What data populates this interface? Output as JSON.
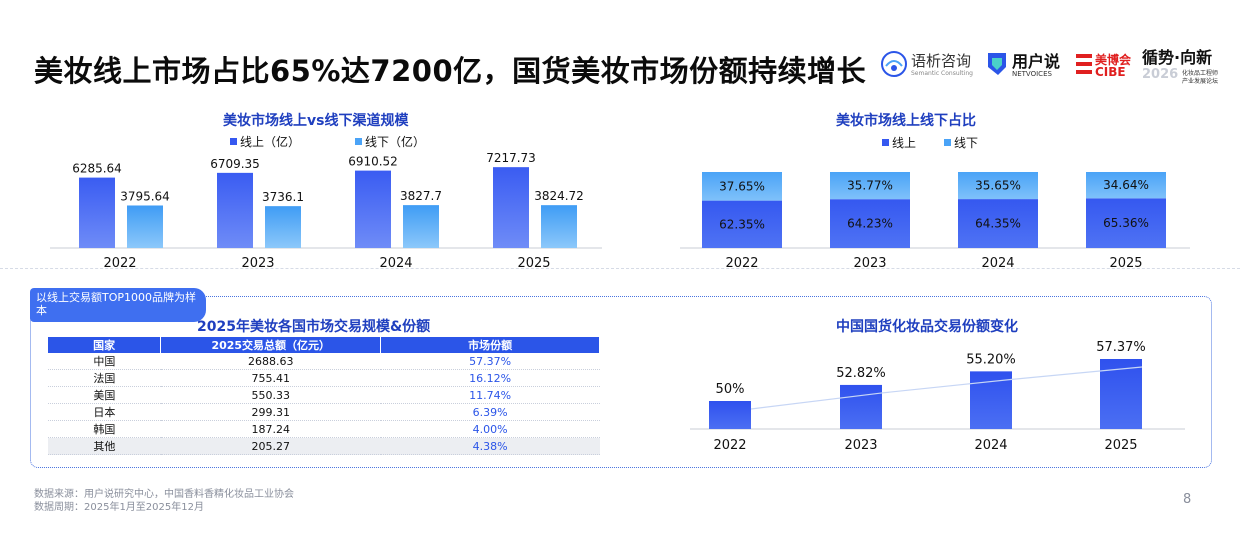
{
  "page": {
    "title": "美妆线上市场占比65%达7200亿，国货美妆市场份额持续增长",
    "page_number": "8",
    "badge": "以线上交易额TOP1000品牌为样本",
    "source_line1": "数据来源：用户说研究中心，中国香料香精化妆品工业协会",
    "source_line2": "数据周期：2025年1月至2025年12月",
    "watermark": "用户说 Netvoices"
  },
  "logos": {
    "semantic_cn": "语析咨询",
    "semantic_en": "Semantic Consulting",
    "netvoices_cn": "用户说",
    "netvoices_en": "NETVOICES",
    "cibe_cn": "美博会",
    "cibe_en": "CIBE",
    "trend_cn": "循势·向新",
    "trend_year": "2026",
    "trend_sub1": "化妆品工程师",
    "trend_sub2": "产业发展论坛"
  },
  "colors": {
    "online": "#3558f0",
    "offline": "#4aa3f7",
    "title_blue": "#1f3fbf",
    "header_blue": "#2b55e8"
  },
  "chart_data": [
    {
      "id": "channel_scale",
      "type": "bar",
      "title": "美妆市场线上vs线下渠道规模",
      "categories": [
        "2022",
        "2023",
        "2024",
        "2025"
      ],
      "series": [
        {
          "name": "线上（亿）",
          "values": [
            6285.64,
            6709.35,
            6910.52,
            7217.73
          ],
          "labels": [
            "6285.64",
            "6709.35",
            "6910.52",
            "7217.73"
          ]
        },
        {
          "name": "线下（亿）",
          "values": [
            3795.64,
            3736.1,
            3827.7,
            3824.72
          ],
          "labels": [
            "3795.64",
            "3736.1",
            "3827.7",
            "3824.72"
          ]
        }
      ],
      "ylim": [
        0,
        8000
      ],
      "legend": "top",
      "grid": false
    },
    {
      "id": "channel_share",
      "type": "bar",
      "stacked": true,
      "title": "美妆市场线上线下占比",
      "categories": [
        "2022",
        "2023",
        "2024",
        "2025"
      ],
      "series": [
        {
          "name": "线上",
          "values": [
            62.35,
            64.23,
            64.35,
            65.36
          ],
          "labels": [
            "62.35%",
            "64.23%",
            "64.35%",
            "65.36%"
          ]
        },
        {
          "name": "线下",
          "values": [
            37.65,
            35.77,
            35.65,
            34.64
          ],
          "labels": [
            "37.65%",
            "35.77%",
            "35.65%",
            "34.64%"
          ]
        }
      ],
      "ylim": [
        0,
        100
      ],
      "legend": "top",
      "grid": false
    },
    {
      "id": "country_table",
      "type": "table",
      "title": "2025年美妆各国市场交易规模&份额",
      "columns": [
        "国家",
        "2025交易总额（亿元）",
        "市场份额"
      ],
      "rows": [
        [
          "中国",
          "2688.63",
          "57.37%"
        ],
        [
          "法国",
          "755.41",
          "16.12%"
        ],
        [
          "美国",
          "550.33",
          "11.74%"
        ],
        [
          "日本",
          "299.31",
          "6.39%"
        ],
        [
          "韩国",
          "187.24",
          "4.00%"
        ],
        [
          "其他",
          "205.27",
          "4.38%"
        ]
      ]
    },
    {
      "id": "domestic_share",
      "type": "bar",
      "title": "中国国货化妆品交易份额变化",
      "categories": [
        "2022",
        "2023",
        "2024",
        "2025"
      ],
      "values": [
        50,
        52.82,
        55.2,
        57.37
      ],
      "labels": [
        "50%",
        "52.82%",
        "55.20%",
        "57.37%"
      ],
      "ylim": [
        40,
        60
      ],
      "trend_line": true,
      "grid": false
    }
  ]
}
